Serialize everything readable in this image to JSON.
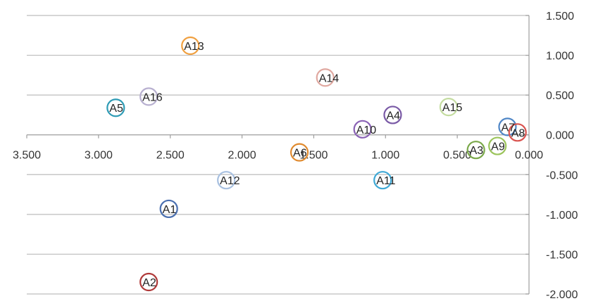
{
  "chart_data": {
    "type": "scatter",
    "title": "",
    "xlabel": "",
    "ylabel": "",
    "x_reversed": true,
    "xlim": [
      0,
      3.5
    ],
    "ylim": [
      -2,
      1.5
    ],
    "xticks": [
      3.5,
      3.0,
      2.5,
      2.0,
      1.5,
      1.0,
      0.5,
      0.0
    ],
    "yticks": [
      1.5,
      1.0,
      0.5,
      0.0,
      -0.5,
      -1.0,
      -1.5,
      -2.0
    ],
    "x_tick_labels": [
      "3.500",
      "3.000",
      "2.500",
      "2.000",
      "1.500",
      "1.000",
      "0.500",
      "0.000"
    ],
    "y_tick_labels": [
      "1.500",
      "1.000",
      "0.500",
      "0.000",
      "-0.500",
      "-1.000",
      "-1.500",
      "-2.000"
    ],
    "grid": "horizontal",
    "legend": "none",
    "marker": "hollow-circle",
    "points": [
      {
        "label": "A1",
        "x": 2.51,
        "y": -0.93,
        "color": "#4a6fb0"
      },
      {
        "label": "A2",
        "x": 2.65,
        "y": -1.85,
        "color": "#b03a3a"
      },
      {
        "label": "A3",
        "x": 0.37,
        "y": -0.19,
        "color": "#7aa84a"
      },
      {
        "label": "A4",
        "x": 0.95,
        "y": 0.25,
        "color": "#7a5aa6"
      },
      {
        "label": "A5",
        "x": 2.88,
        "y": 0.34,
        "color": "#2e9bb5"
      },
      {
        "label": "A6",
        "x": 1.6,
        "y": -0.22,
        "color": "#e08a2e"
      },
      {
        "label": "A7",
        "x": 0.15,
        "y": 0.1,
        "color": "#4f86c6"
      },
      {
        "label": "A8",
        "x": 0.08,
        "y": 0.03,
        "color": "#d9534f"
      },
      {
        "label": "A9",
        "x": 0.22,
        "y": -0.14,
        "color": "#9bc45b"
      },
      {
        "label": "A10",
        "x": 1.16,
        "y": 0.07,
        "color": "#8a62b5"
      },
      {
        "label": "A11",
        "x": 1.02,
        "y": -0.57,
        "color": "#3fa9d6"
      },
      {
        "label": "A12",
        "x": 2.11,
        "y": -0.57,
        "color": "#a8c0e0"
      },
      {
        "label": "A13",
        "x": 2.36,
        "y": 1.12,
        "color": "#f0a040"
      },
      {
        "label": "A14",
        "x": 1.42,
        "y": 0.72,
        "color": "#e0a8a0"
      },
      {
        "label": "A15",
        "x": 0.56,
        "y": 0.35,
        "color": "#c4dca0"
      },
      {
        "label": "A16",
        "x": 2.65,
        "y": 0.48,
        "color": "#b8b0d0"
      }
    ]
  }
}
